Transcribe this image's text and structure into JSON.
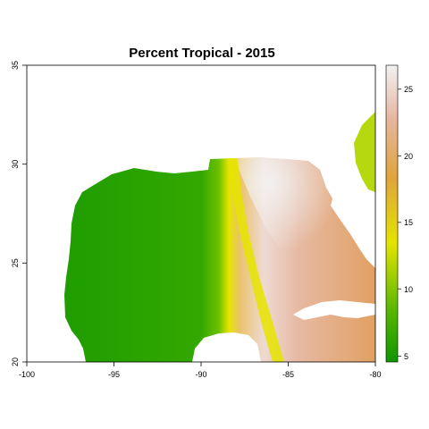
{
  "title": "Percent Tropical - 2015",
  "x_ticks": [
    "-100",
    "-95",
    "-90",
    "-85",
    "-80"
  ],
  "y_ticks": [
    "20",
    "25",
    "30",
    "35"
  ],
  "colorbar_ticks": [
    "5",
    "10",
    "15",
    "20",
    "25"
  ],
  "colors": {
    "low": "#1a9a00",
    "mid_low": "#7cc800",
    "mid": "#e6e600",
    "mid_high": "#e0a040",
    "high_salmon": "#e6b09a",
    "max": "#f2f2f2"
  },
  "chart_data": {
    "type": "heatmap",
    "title": "Percent Tropical - 2015",
    "xlabel": "",
    "ylabel": "",
    "xlim": [
      -100,
      -80
    ],
    "ylim": [
      20,
      35
    ],
    "colorbar_range": [
      4.5,
      26.8
    ],
    "colorbar_ticks": [
      5,
      10,
      15,
      20,
      25
    ],
    "colorscale": [
      "#1a9a00",
      "#7cc800",
      "#e6e600",
      "#e0a040",
      "#e6b09a",
      "#f2f2f2"
    ],
    "description_of_field": "Low values (~5) across the western Gulf, sharp yellow transition band near -88 to -85 longitude, peak (~26) near -86.5, 30 declining to ~20 toward the southeast"
  }
}
